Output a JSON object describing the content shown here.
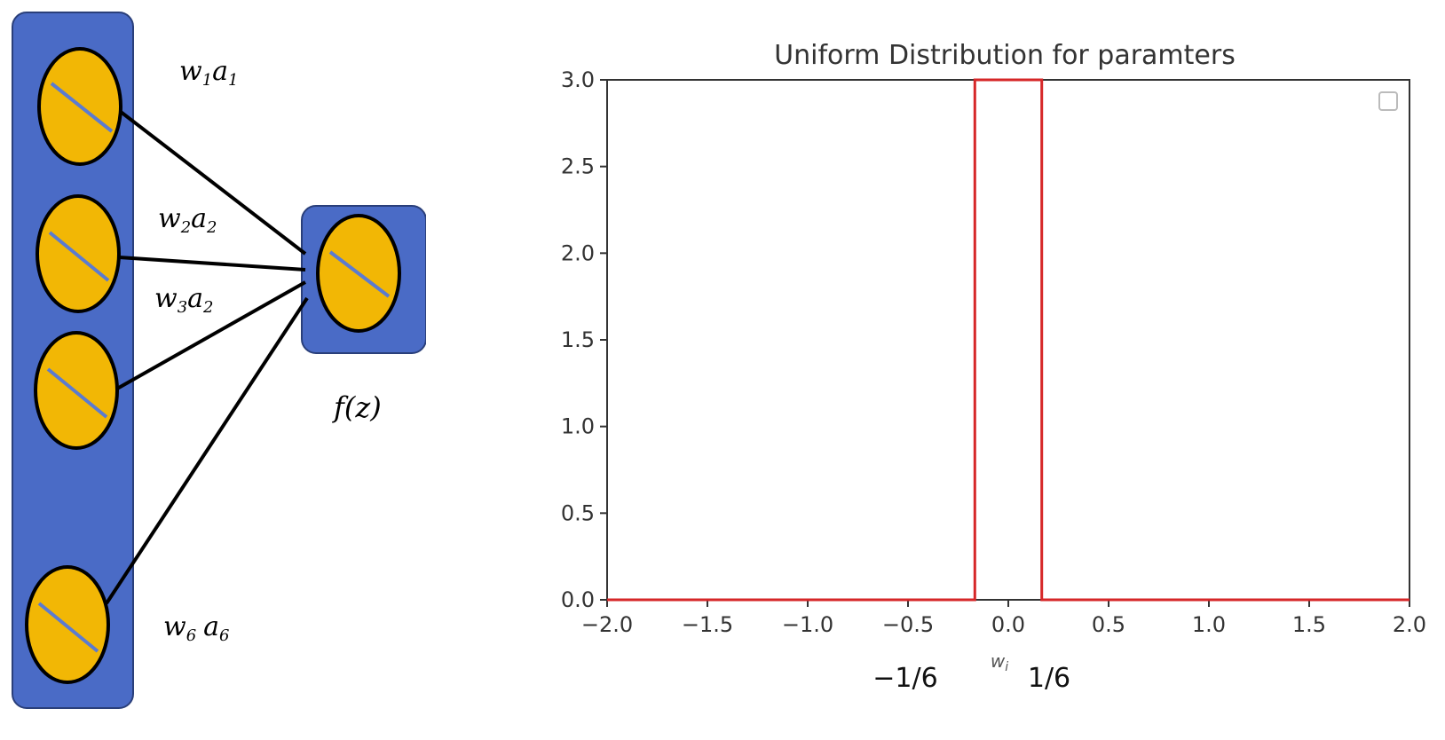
{
  "diagram": {
    "labels": {
      "w1a1": {
        "w": "w",
        "ws": "1",
        "a": "a",
        "as": "1"
      },
      "w2a2": {
        "w": "w",
        "ws": "2",
        "a": "a",
        "as": "2"
      },
      "w3a2": {
        "w": "w",
        "ws": "3",
        "a": "a",
        "as": "2"
      },
      "w6a6": {
        "w": "w",
        "ws": "6",
        "a": "a",
        "as": "6"
      },
      "output": "f(z)"
    },
    "colors": {
      "panel": "#4a6bc6",
      "neuron": "#f2b705",
      "slash": "#5b7bd0",
      "edge": "#000000"
    }
  },
  "chart_data": {
    "type": "line",
    "title": "Uniform Distribution for paramters",
    "xlabel": "w",
    "xlabel_sub": "i",
    "ylabel": "",
    "xlim": [
      -2.0,
      2.0
    ],
    "ylim": [
      0.0,
      3.0
    ],
    "xticks": [
      "−2.0",
      "−1.5",
      "−1.0",
      "−0.5",
      "0.0",
      "0.5",
      "1.0",
      "1.5",
      "2.0"
    ],
    "yticks": [
      "0.0",
      "0.5",
      "1.0",
      "1.5",
      "2.0",
      "2.5",
      "3.0"
    ],
    "series": [
      {
        "color": "#d62728",
        "x": [
          -2.0,
          -0.1667,
          -0.1667,
          0.1667,
          0.1667,
          2.0
        ],
        "y": [
          0.0,
          0.0,
          3.0,
          3.0,
          0.0,
          0.0
        ]
      }
    ],
    "annotations": [
      "−1/6",
      "1/6"
    ],
    "legend": "top-right (empty)",
    "grid": false
  }
}
